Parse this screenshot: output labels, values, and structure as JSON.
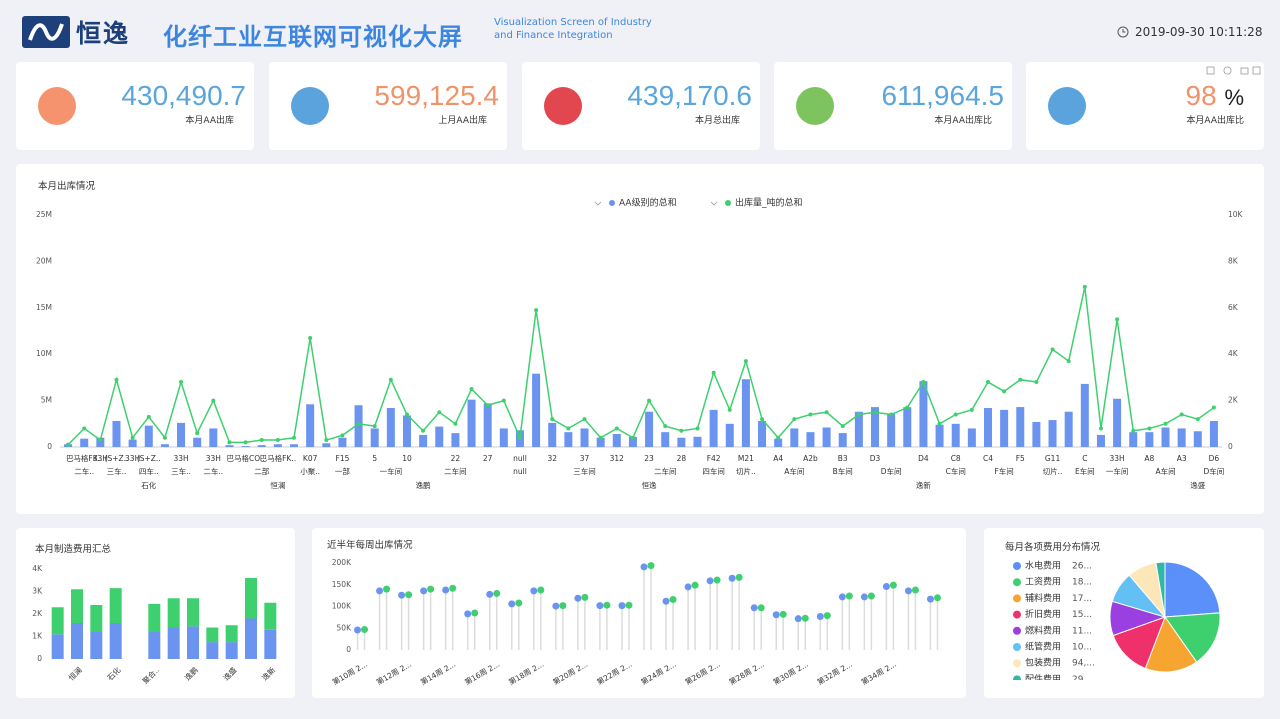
{
  "header": {
    "logo": "恒逸",
    "title": "化纤工业互联网可视化大屏",
    "subtitle": "Visualization Screen of Industry and Finance Integration",
    "datetime": "2019-09-30 10:11:28"
  },
  "kpis": [
    {
      "value": "430,490.7",
      "label": "本月AA出库"
    },
    {
      "value": "599,125.4",
      "label": "上月AA出库"
    },
    {
      "value": "439,170.6",
      "label": "本月总出库"
    },
    {
      "value": "611,964.5",
      "label": "本月AA出库比"
    },
    {
      "value": "98",
      "unit": "%",
      "label": "本月AA出库比"
    }
  ],
  "chart_data": [
    {
      "type": "combo",
      "title": "本月出库情况",
      "grid": false,
      "categories": [
        null,
        "巴马格FK..",
        "33H",
        "(S+Z..",
        "33H",
        "(S+Z..",
        null,
        "33H",
        null,
        "33H",
        null,
        "巴马格CO..",
        null,
        "巴马格FK..",
        null,
        "K07",
        null,
        "F15",
        null,
        "5",
        null,
        "10",
        null,
        null,
        "22",
        null,
        "27",
        null,
        "null",
        null,
        "32",
        null,
        "37",
        null,
        "312",
        null,
        "23",
        null,
        "28",
        null,
        "F42",
        null,
        "M21",
        null,
        "A4",
        null,
        "A2b",
        null,
        "B3",
        null,
        "D3",
        null,
        null,
        "D4",
        null,
        "C8",
        null,
        "C4",
        null,
        "F5",
        null,
        "G11",
        null,
        "C",
        null,
        "33H",
        null,
        "A8",
        null,
        "A3",
        null,
        "D6"
      ],
      "categories_level2": [
        null,
        "二车..",
        null,
        "三车..",
        null,
        "四车..",
        null,
        "三车..",
        null,
        "二车..",
        null,
        null,
        "二部",
        null,
        null,
        "小聚..",
        null,
        "一部",
        null,
        null,
        "一车间",
        null,
        null,
        null,
        "二车间",
        null,
        null,
        null,
        "null",
        null,
        null,
        null,
        "三车间",
        null,
        null,
        null,
        null,
        "二车间",
        null,
        null,
        "四车间",
        null,
        "切片..",
        null,
        null,
        "A车间",
        null,
        null,
        "B车间",
        null,
        null,
        "D车间",
        null,
        null,
        null,
        "C车间",
        null,
        null,
        "F车间",
        null,
        null,
        "切片..",
        null,
        "E车间",
        null,
        "一车间",
        null,
        null,
        "A车间",
        null,
        null,
        "D车间"
      ],
      "categories_level3": [
        null,
        null,
        null,
        null,
        null,
        "石化",
        null,
        null,
        null,
        null,
        null,
        null,
        null,
        "恒澜",
        null,
        null,
        null,
        null,
        null,
        null,
        null,
        null,
        "逸鹏",
        null,
        null,
        null,
        null,
        null,
        null,
        null,
        null,
        null,
        null,
        null,
        null,
        null,
        "恒逸",
        null,
        null,
        null,
        null,
        null,
        null,
        null,
        null,
        null,
        null,
        null,
        null,
        null,
        null,
        null,
        null,
        "逸新",
        null,
        null,
        null,
        null,
        null,
        null,
        null,
        null,
        null,
        null,
        null,
        null,
        null,
        null,
        null,
        null,
        "逸盛",
        null
      ],
      "series": [
        {
          "name": "AA级别的总和",
          "type": "bar",
          "color": "#6b93f0",
          "values": [
            300000,
            900000,
            1000000,
            2800000,
            800000,
            2300000,
            300000,
            2600000,
            1000000,
            2000000,
            200000,
            100000,
            200000,
            300000,
            300000,
            4600000,
            400000,
            1000000,
            4500000,
            2000000,
            4200000,
            3400000,
            1300000,
            2200000,
            1500000,
            5100000,
            4700000,
            2000000,
            1800000,
            7900000,
            2600000,
            1600000,
            2000000,
            1000000,
            1400000,
            1100000,
            3800000,
            1600000,
            1000000,
            1100000,
            4000000,
            2500000,
            7300000,
            2800000,
            900000,
            2000000,
            1600000,
            2100000,
            1500000,
            3800000,
            4300000,
            3600000,
            4300000,
            7100000,
            2400000,
            2500000,
            2000000,
            4200000,
            4000000,
            4300000,
            2700000,
            2900000,
            3800000,
            6800000,
            1300000,
            5200000,
            1600000,
            1600000,
            2100000,
            2000000,
            1700000,
            2800000
          ]
        },
        {
          "name": "出库量_吨的总和",
          "type": "line",
          "axis": "y2",
          "color": "#3ed06f",
          "values": [
            100,
            800,
            300,
            2900,
            400,
            1300,
            400,
            2800,
            600,
            2000,
            200,
            200,
            300,
            300,
            400,
            4700,
            300,
            500,
            1000,
            900,
            2900,
            1400,
            700,
            1500,
            1000,
            2500,
            1800,
            2000,
            400,
            5900,
            1200,
            800,
            1200,
            400,
            800,
            400,
            2000,
            900,
            700,
            800,
            3200,
            1600,
            3700,
            1200,
            400,
            1200,
            1400,
            1500,
            900,
            1400,
            1500,
            1400,
            1700,
            2800,
            1000,
            1400,
            1600,
            2800,
            2400,
            2900,
            2800,
            4200,
            3700,
            6900,
            800,
            5500,
            700,
            800,
            1000,
            1400,
            1200,
            1700
          ]
        }
      ],
      "ylim": [
        0,
        25000000
      ],
      "yticks": [
        0,
        {
          "value": 5000000,
          "label": "5M"
        },
        {
          "value": 10000000,
          "label": "10M"
        },
        {
          "value": 15000000,
          "label": "15M"
        },
        {
          "value": 20000000,
          "label": "20M"
        },
        {
          "value": 25000000,
          "label": "25M"
        }
      ],
      "y2lim": [
        0,
        10000
      ],
      "y2ticks": [
        0,
        {
          "value": 2000,
          "label": "2K"
        },
        {
          "value": 4000,
          "label": "4K"
        },
        {
          "value": 6000,
          "label": "6K"
        },
        {
          "value": 8000,
          "label": "8K"
        },
        {
          "value": 10000,
          "label": "10K"
        }
      ]
    },
    {
      "type": "bar",
      "stacked": true,
      "title": "本月制造费用汇总",
      "grid": false,
      "categories": [
        null,
        "恒澜",
        null,
        "石化",
        null,
        "聚合..",
        null,
        "逸鹏",
        null,
        "逸盛",
        null,
        "逸新"
      ],
      "series": [
        {
          "color": "#6b93f0",
          "values": [
            1100,
            1600,
            1200,
            1600,
            null,
            1200,
            1400,
            1450,
            750,
            750,
            1800,
            1300
          ]
        },
        {
          "color": "#3ed06f",
          "values": [
            1200,
            1500,
            1200,
            1550,
            null,
            1250,
            1300,
            1250,
            650,
            750,
            1800,
            1200
          ]
        }
      ],
      "ylim": [
        0,
        4000
      ],
      "yticks": [
        0,
        {
          "value": 1000,
          "label": "1K"
        },
        {
          "value": 2000,
          "label": "2K"
        },
        {
          "value": 3000,
          "label": "3K"
        },
        {
          "value": 4000,
          "label": "4K"
        }
      ]
    },
    {
      "type": "lollipop",
      "title": "近半年每周出库情况",
      "grid": false,
      "categories": [
        "第10周 2...",
        null,
        "第12周 2...",
        null,
        "第14周 2...",
        null,
        "第16周 2...",
        null,
        "第18周 2...",
        null,
        "第20周 2...",
        null,
        "第22周 2...",
        null,
        "第24周 2...",
        null,
        "第26周 2...",
        null,
        "第28周 2...",
        null,
        "第30周 2...",
        null,
        "第32周 2...",
        null,
        "第34周 2...",
        null,
        null
      ],
      "series": [
        {
          "color": "#6b93f0",
          "values": [
            46000,
            136000,
            126000,
            136000,
            138000,
            83000,
            128000,
            106000,
            136000,
            101000,
            119000,
            102000,
            102000,
            191000,
            112000,
            145000,
            159000,
            165000,
            97000,
            81000,
            72000,
            77000,
            122000,
            122000,
            146000,
            136000,
            117000
          ]
        },
        {
          "color": "#3ed06f",
          "values": [
            47000,
            140000,
            127000,
            140000,
            142000,
            85000,
            130000,
            108000,
            138000,
            102000,
            121000,
            103000,
            103000,
            194000,
            116000,
            149000,
            161000,
            167000,
            97000,
            82000,
            73000,
            79000,
            124000,
            124000,
            149000,
            138000,
            120000
          ]
        }
      ],
      "ylim": [
        0,
        200000
      ],
      "yticks": [
        0,
        {
          "value": 50000,
          "label": "50K"
        },
        {
          "value": 100000,
          "label": "100K"
        },
        {
          "value": 150000,
          "label": "150K"
        },
        {
          "value": 200000,
          "label": "200K"
        }
      ]
    },
    {
      "type": "pie",
      "title": "每月各项费用分布情况",
      "categories": [
        "水电费用",
        "工资费用",
        "辅料费用",
        "折旧费用",
        "燃料费用",
        "纸管费用",
        "包装费用",
        "配件费用"
      ],
      "values": [
        260000,
        180000,
        170000,
        150000,
        110000,
        100000,
        94000,
        29000
      ],
      "value_labels": [
        "26...",
        "18...",
        "17...",
        "15...",
        "11...",
        "10...",
        "94,...",
        "29..."
      ],
      "colors": [
        "#5b8ff9",
        "#3ed06f",
        "#f7a531",
        "#f0306b",
        "#9b3fe0",
        "#62c0f5",
        "#fde7b8",
        "#2fb8a8"
      ]
    }
  ]
}
